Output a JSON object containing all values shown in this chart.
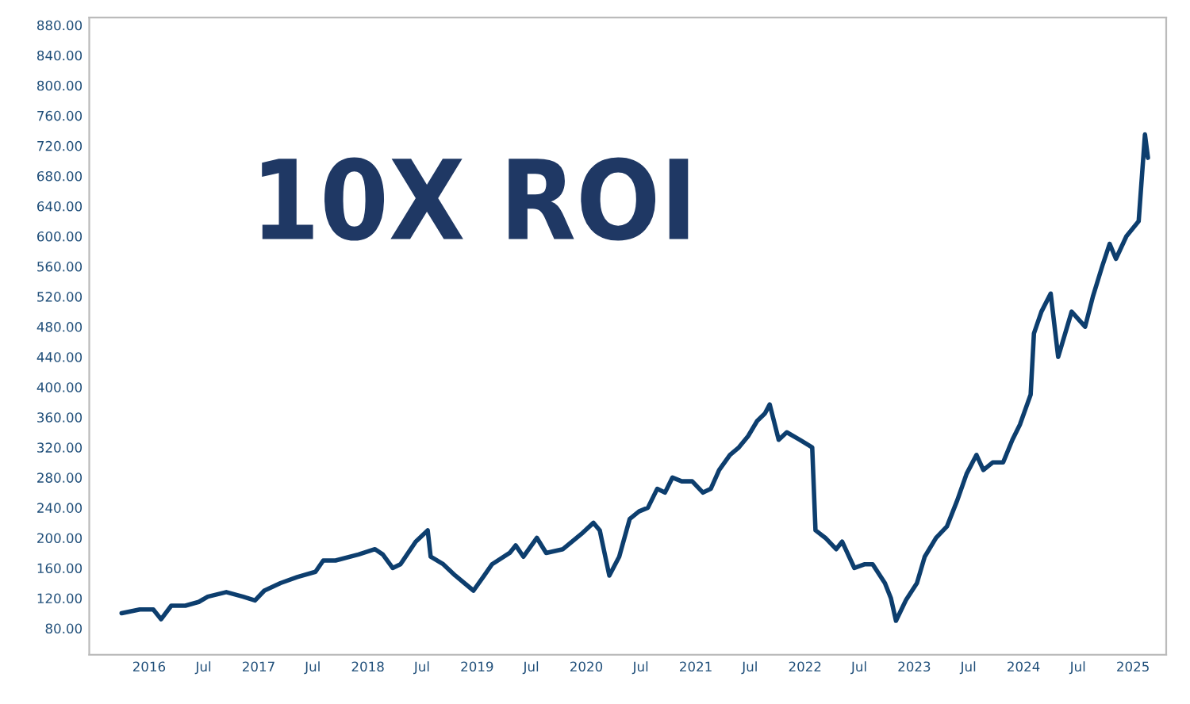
{
  "chart_data": {
    "type": "line",
    "annotations": [
      "10X ROI"
    ],
    "x": [
      "2015-10-01",
      "2015-12-01",
      "2016-01-15",
      "2016-02-10",
      "2016-03-15",
      "2016-05-01",
      "2016-06-15",
      "2016-07-15",
      "2016-09-15",
      "2016-11-10",
      "2016-12-20",
      "2017-01-20",
      "2017-03-15",
      "2017-05-10",
      "2017-07-10",
      "2017-08-05",
      "2017-09-15",
      "2017-12-01",
      "2018-01-25",
      "2018-02-20",
      "2018-03-25",
      "2018-04-20",
      "2018-06-10",
      "2018-07-20",
      "2018-07-30",
      "2018-09-10",
      "2018-10-20",
      "2018-12-20",
      "2019-01-25",
      "2019-02-20",
      "2019-04-20",
      "2019-05-10",
      "2019-06-05",
      "2019-07-20",
      "2019-08-20",
      "2019-10-15",
      "2019-12-15",
      "2020-01-25",
      "2020-02-15",
      "2020-03-18",
      "2020-04-20",
      "2020-05-25",
      "2020-06-25",
      "2020-07-25",
      "2020-08-25",
      "2020-09-20",
      "2020-10-15",
      "2020-11-15",
      "2020-12-20",
      "2021-01-25",
      "2021-02-20",
      "2021-03-20",
      "2021-04-25",
      "2021-05-25",
      "2021-06-25",
      "2021-07-25",
      "2021-08-20",
      "2021-09-05",
      "2021-10-05",
      "2021-11-01",
      "2021-12-15",
      "2022-01-25",
      "2022-02-05",
      "2022-03-10",
      "2022-04-15",
      "2022-05-05",
      "2022-06-15",
      "2022-07-20",
      "2022-08-15",
      "2022-09-25",
      "2022-10-15",
      "2022-11-01",
      "2022-12-05",
      "2023-01-10",
      "2023-02-05",
      "2023-03-15",
      "2023-04-20",
      "2023-05-25",
      "2023-06-25",
      "2023-07-28",
      "2023-08-20",
      "2023-09-20",
      "2023-10-25",
      "2023-11-25",
      "2023-12-20",
      "2024-01-25",
      "2024-02-05",
      "2024-03-01",
      "2024-04-01",
      "2024-04-26",
      "2024-06-10",
      "2024-07-25",
      "2024-08-20",
      "2024-09-20",
      "2024-10-15",
      "2024-11-05",
      "2024-12-10",
      "2025-01-20",
      "2025-02-10",
      "2025-02-20"
    ],
    "series": [
      {
        "color": "#0d3e6e",
        "values": [
          100,
          105,
          105,
          92,
          110,
          110,
          115,
          122,
          128,
          122,
          117,
          130,
          140,
          148,
          155,
          170,
          170,
          178,
          185,
          178,
          160,
          165,
          195,
          210,
          175,
          165,
          150,
          130,
          150,
          165,
          180,
          190,
          175,
          200,
          180,
          185,
          205,
          220,
          210,
          150,
          175,
          225,
          235,
          240,
          265,
          260,
          280,
          275,
          275,
          260,
          265,
          290,
          310,
          320,
          335,
          355,
          365,
          377,
          330,
          340,
          330,
          320,
          210,
          200,
          185,
          195,
          160,
          165,
          165,
          140,
          120,
          90,
          118,
          140,
          175,
          200,
          215,
          250,
          285,
          310,
          290,
          300,
          300,
          330,
          350,
          390,
          471,
          500,
          524,
          440,
          500,
          480,
          520,
          560,
          590,
          570,
          600,
          620,
          735,
          704
        ]
      }
    ],
    "xlim": [
      "2015-06-15",
      "2025-04-22"
    ],
    "xticks": [
      {
        "value": "2016-01-01",
        "label": "2016"
      },
      {
        "value": "2016-07-01",
        "label": "Jul"
      },
      {
        "value": "2017-01-01",
        "label": "2017"
      },
      {
        "value": "2017-07-01",
        "label": "Jul"
      },
      {
        "value": "2018-01-01",
        "label": "2018"
      },
      {
        "value": "2018-07-01",
        "label": "Jul"
      },
      {
        "value": "2019-01-01",
        "label": "2019"
      },
      {
        "value": "2019-07-01",
        "label": "Jul"
      },
      {
        "value": "2020-01-01",
        "label": "2020"
      },
      {
        "value": "2020-07-01",
        "label": "Jul"
      },
      {
        "value": "2021-01-01",
        "label": "2021"
      },
      {
        "value": "2021-07-01",
        "label": "Jul"
      },
      {
        "value": "2022-01-01",
        "label": "2022"
      },
      {
        "value": "2022-07-01",
        "label": "Jul"
      },
      {
        "value": "2023-01-01",
        "label": "2023"
      },
      {
        "value": "2023-07-01",
        "label": "Jul"
      },
      {
        "value": "2024-01-01",
        "label": "2024"
      },
      {
        "value": "2024-07-01",
        "label": "Jul"
      },
      {
        "value": "2025-01-01",
        "label": "2025"
      }
    ],
    "ylim": [
      45,
      890
    ],
    "yticks": [
      {
        "value": 80,
        "label": "80.00"
      },
      {
        "value": 120,
        "label": "120.00"
      },
      {
        "value": 160,
        "label": "160.00"
      },
      {
        "value": 200,
        "label": "200.00"
      },
      {
        "value": 240,
        "label": "240.00"
      },
      {
        "value": 280,
        "label": "280.00"
      },
      {
        "value": 320,
        "label": "320.00"
      },
      {
        "value": 360,
        "label": "360.00"
      },
      {
        "value": 400,
        "label": "400.00"
      },
      {
        "value": 440,
        "label": "440.00"
      },
      {
        "value": 480,
        "label": "480.00"
      },
      {
        "value": 520,
        "label": "520.00"
      },
      {
        "value": 560,
        "label": "560.00"
      },
      {
        "value": 600,
        "label": "600.00"
      },
      {
        "value": 640,
        "label": "640.00"
      },
      {
        "value": 680,
        "label": "680.00"
      },
      {
        "value": 720,
        "label": "720.00"
      },
      {
        "value": 760,
        "label": "760.00"
      },
      {
        "value": 800,
        "label": "800.00"
      },
      {
        "value": 840,
        "label": "840.00"
      },
      {
        "value": 880,
        "label": "880.00"
      }
    ],
    "grid": false,
    "legend": false
  }
}
